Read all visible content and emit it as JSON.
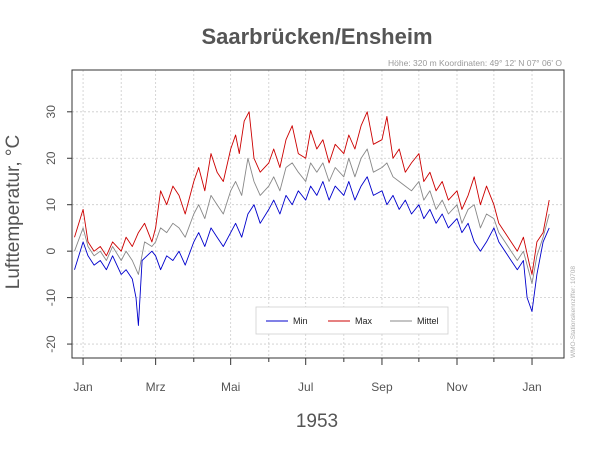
{
  "chart_data": {
    "type": "line",
    "title": "Saarbrücken/Ensheim",
    "subtitle": "Höhe: 320 m   Koordinaten: 49° 12' N  07° 06' O",
    "side_note": "WMO-Stationskennziffer: 10708",
    "xlabel": "1953",
    "ylabel": "Lufttemperatur, °C",
    "ylim": [
      -23,
      39
    ],
    "yticks": [
      -20,
      -10,
      0,
      10,
      20,
      30
    ],
    "xlim": [
      "1952-12-23",
      "1954-01-27"
    ],
    "xticks": [
      {
        "label": "Jan",
        "date": "1953-01-01"
      },
      {
        "label": "Mrz",
        "date": "1953-03-01"
      },
      {
        "label": "Mai",
        "date": "1953-05-01"
      },
      {
        "label": "Jul",
        "date": "1953-07-01"
      },
      {
        "label": "Sep",
        "date": "1953-09-01"
      },
      {
        "label": "Nov",
        "date": "1953-11-01"
      },
      {
        "label": "Jan",
        "date": "1954-01-01"
      }
    ],
    "minor_ticks": [
      "1953-02-01",
      "1953-04-01",
      "1953-06-01",
      "1953-08-01",
      "1953-10-01",
      "1953-12-01"
    ],
    "grid": true,
    "legend_position": "bottom-center",
    "series": [
      {
        "name": "Min",
        "color": "#0000cc",
        "points": [
          [
            "1952-12-25",
            -4
          ],
          [
            "1953-01-01",
            2
          ],
          [
            "1953-01-05",
            -1
          ],
          [
            "1953-01-10",
            -3
          ],
          [
            "1953-01-15",
            -2
          ],
          [
            "1953-01-20",
            -4
          ],
          [
            "1953-01-25",
            -1
          ],
          [
            "1953-02-01",
            -5
          ],
          [
            "1953-02-05",
            -4
          ],
          [
            "1953-02-10",
            -6
          ],
          [
            "1953-02-13",
            -10
          ],
          [
            "1953-02-15",
            -16
          ],
          [
            "1953-02-18",
            -2
          ],
          [
            "1953-02-22",
            -1
          ],
          [
            "1953-02-26",
            0
          ],
          [
            "1953-03-01",
            -1
          ],
          [
            "1953-03-05",
            -4
          ],
          [
            "1953-03-10",
            -1
          ],
          [
            "1953-03-15",
            -2
          ],
          [
            "1953-03-20",
            0
          ],
          [
            "1953-03-25",
            -3
          ],
          [
            "1953-04-01",
            2
          ],
          [
            "1953-04-05",
            4
          ],
          [
            "1953-04-10",
            1
          ],
          [
            "1953-04-15",
            5
          ],
          [
            "1953-04-20",
            3
          ],
          [
            "1953-04-25",
            1
          ],
          [
            "1953-05-01",
            4
          ],
          [
            "1953-05-05",
            6
          ],
          [
            "1953-05-10",
            3
          ],
          [
            "1953-05-15",
            8
          ],
          [
            "1953-05-20",
            10
          ],
          [
            "1953-05-25",
            6
          ],
          [
            "1953-06-01",
            9
          ],
          [
            "1953-06-05",
            11
          ],
          [
            "1953-06-10",
            8
          ],
          [
            "1953-06-15",
            12
          ],
          [
            "1953-06-20",
            10
          ],
          [
            "1953-06-25",
            13
          ],
          [
            "1953-07-01",
            11
          ],
          [
            "1953-07-05",
            14
          ],
          [
            "1953-07-10",
            12
          ],
          [
            "1953-07-15",
            15
          ],
          [
            "1953-07-20",
            11
          ],
          [
            "1953-07-25",
            14
          ],
          [
            "1953-08-01",
            12
          ],
          [
            "1953-08-05",
            15
          ],
          [
            "1953-08-10",
            11
          ],
          [
            "1953-08-15",
            14
          ],
          [
            "1953-08-20",
            16
          ],
          [
            "1953-08-25",
            12
          ],
          [
            "1953-09-01",
            13
          ],
          [
            "1953-09-05",
            10
          ],
          [
            "1953-09-10",
            12
          ],
          [
            "1953-09-15",
            9
          ],
          [
            "1953-09-20",
            11
          ],
          [
            "1953-09-25",
            8
          ],
          [
            "1953-10-01",
            10
          ],
          [
            "1953-10-05",
            7
          ],
          [
            "1953-10-10",
            9
          ],
          [
            "1953-10-15",
            6
          ],
          [
            "1953-10-20",
            8
          ],
          [
            "1953-10-25",
            5
          ],
          [
            "1953-11-01",
            7
          ],
          [
            "1953-11-05",
            4
          ],
          [
            "1953-11-10",
            6
          ],
          [
            "1953-11-15",
            2
          ],
          [
            "1953-11-20",
            0
          ],
          [
            "1953-11-25",
            2
          ],
          [
            "1953-12-01",
            5
          ],
          [
            "1953-12-05",
            2
          ],
          [
            "1953-12-10",
            0
          ],
          [
            "1953-12-15",
            -2
          ],
          [
            "1953-12-20",
            -4
          ],
          [
            "1953-12-25",
            -2
          ],
          [
            "1953-12-28",
            -10
          ],
          [
            "1954-01-01",
            -13
          ],
          [
            "1954-01-05",
            -5
          ],
          [
            "1954-01-10",
            2
          ],
          [
            "1954-01-15",
            5
          ]
        ]
      },
      {
        "name": "Max",
        "color": "#cc0000",
        "points": [
          [
            "1952-12-25",
            3
          ],
          [
            "1953-01-01",
            9
          ],
          [
            "1953-01-05",
            2
          ],
          [
            "1953-01-10",
            0
          ],
          [
            "1953-01-15",
            1
          ],
          [
            "1953-01-20",
            -1
          ],
          [
            "1953-01-25",
            2
          ],
          [
            "1953-02-01",
            0
          ],
          [
            "1953-02-05",
            3
          ],
          [
            "1953-02-10",
            1
          ],
          [
            "1953-02-15",
            4
          ],
          [
            "1953-02-20",
            6
          ],
          [
            "1953-02-26",
            2
          ],
          [
            "1953-03-01",
            5
          ],
          [
            "1953-03-05",
            13
          ],
          [
            "1953-03-10",
            10
          ],
          [
            "1953-03-15",
            14
          ],
          [
            "1953-03-20",
            12
          ],
          [
            "1953-03-25",
            8
          ],
          [
            "1953-04-01",
            15
          ],
          [
            "1953-04-05",
            18
          ],
          [
            "1953-04-10",
            13
          ],
          [
            "1953-04-15",
            21
          ],
          [
            "1953-04-20",
            17
          ],
          [
            "1953-04-25",
            15
          ],
          [
            "1953-05-01",
            22
          ],
          [
            "1953-05-05",
            25
          ],
          [
            "1953-05-08",
            21
          ],
          [
            "1953-05-12",
            28
          ],
          [
            "1953-05-16",
            30
          ],
          [
            "1953-05-20",
            20
          ],
          [
            "1953-05-25",
            17
          ],
          [
            "1953-06-01",
            19
          ],
          [
            "1953-06-05",
            22
          ],
          [
            "1953-06-10",
            18
          ],
          [
            "1953-06-15",
            24
          ],
          [
            "1953-06-20",
            27
          ],
          [
            "1953-06-25",
            21
          ],
          [
            "1953-07-01",
            20
          ],
          [
            "1953-07-05",
            26
          ],
          [
            "1953-07-10",
            22
          ],
          [
            "1953-07-15",
            24
          ],
          [
            "1953-07-20",
            19
          ],
          [
            "1953-07-25",
            23
          ],
          [
            "1953-08-01",
            21
          ],
          [
            "1953-08-05",
            25
          ],
          [
            "1953-08-10",
            22
          ],
          [
            "1953-08-15",
            27
          ],
          [
            "1953-08-20",
            30
          ],
          [
            "1953-08-25",
            23
          ],
          [
            "1953-09-01",
            24
          ],
          [
            "1953-09-05",
            29
          ],
          [
            "1953-09-10",
            20
          ],
          [
            "1953-09-15",
            22
          ],
          [
            "1953-09-20",
            17
          ],
          [
            "1953-09-25",
            19
          ],
          [
            "1953-10-01",
            21
          ],
          [
            "1953-10-05",
            15
          ],
          [
            "1953-10-10",
            17
          ],
          [
            "1953-10-15",
            13
          ],
          [
            "1953-10-20",
            15
          ],
          [
            "1953-10-25",
            11
          ],
          [
            "1953-11-01",
            13
          ],
          [
            "1953-11-05",
            9
          ],
          [
            "1953-11-10",
            12
          ],
          [
            "1953-11-15",
            16
          ],
          [
            "1953-11-20",
            10
          ],
          [
            "1953-11-25",
            14
          ],
          [
            "1953-12-01",
            10
          ],
          [
            "1953-12-05",
            6
          ],
          [
            "1953-12-10",
            4
          ],
          [
            "1953-12-15",
            2
          ],
          [
            "1953-12-20",
            0
          ],
          [
            "1953-12-25",
            3
          ],
          [
            "1953-12-30",
            -3
          ],
          [
            "1954-01-01",
            -5
          ],
          [
            "1954-01-05",
            2
          ],
          [
            "1954-01-10",
            4
          ],
          [
            "1954-01-15",
            11
          ]
        ]
      },
      {
        "name": "Mittel",
        "color": "#888888",
        "points": [
          [
            "1952-12-25",
            0
          ],
          [
            "1953-01-01",
            5
          ],
          [
            "1953-01-05",
            1
          ],
          [
            "1953-01-10",
            -1
          ],
          [
            "1953-01-15",
            0
          ],
          [
            "1953-01-20",
            -2
          ],
          [
            "1953-01-25",
            1
          ],
          [
            "1953-02-01",
            -2
          ],
          [
            "1953-02-05",
            0
          ],
          [
            "1953-02-10",
            -2
          ],
          [
            "1953-02-15",
            -5
          ],
          [
            "1953-02-20",
            2
          ],
          [
            "1953-02-26",
            1
          ],
          [
            "1953-03-01",
            2
          ],
          [
            "1953-03-05",
            5
          ],
          [
            "1953-03-10",
            4
          ],
          [
            "1953-03-15",
            6
          ],
          [
            "1953-03-20",
            5
          ],
          [
            "1953-03-25",
            3
          ],
          [
            "1953-04-01",
            8
          ],
          [
            "1953-04-05",
            10
          ],
          [
            "1953-04-10",
            7
          ],
          [
            "1953-04-15",
            12
          ],
          [
            "1953-04-20",
            10
          ],
          [
            "1953-04-25",
            8
          ],
          [
            "1953-05-01",
            13
          ],
          [
            "1953-05-05",
            15
          ],
          [
            "1953-05-10",
            12
          ],
          [
            "1953-05-15",
            20
          ],
          [
            "1953-05-20",
            15
          ],
          [
            "1953-05-25",
            12
          ],
          [
            "1953-06-01",
            14
          ],
          [
            "1953-06-05",
            16
          ],
          [
            "1953-06-10",
            13
          ],
          [
            "1953-06-15",
            18
          ],
          [
            "1953-06-20",
            19
          ],
          [
            "1953-06-25",
            17
          ],
          [
            "1953-07-01",
            15
          ],
          [
            "1953-07-05",
            19
          ],
          [
            "1953-07-10",
            17
          ],
          [
            "1953-07-15",
            19
          ],
          [
            "1953-07-20",
            15
          ],
          [
            "1953-07-25",
            18
          ],
          [
            "1953-08-01",
            16
          ],
          [
            "1953-08-05",
            20
          ],
          [
            "1953-08-10",
            16
          ],
          [
            "1953-08-15",
            20
          ],
          [
            "1953-08-20",
            22
          ],
          [
            "1953-08-25",
            17
          ],
          [
            "1953-09-01",
            18
          ],
          [
            "1953-09-05",
            19
          ],
          [
            "1953-09-10",
            16
          ],
          [
            "1953-09-15",
            15
          ],
          [
            "1953-09-20",
            14
          ],
          [
            "1953-09-25",
            13
          ],
          [
            "1953-10-01",
            15
          ],
          [
            "1953-10-05",
            11
          ],
          [
            "1953-10-10",
            13
          ],
          [
            "1953-10-15",
            9
          ],
          [
            "1953-10-20",
            11
          ],
          [
            "1953-10-25",
            8
          ],
          [
            "1953-11-01",
            10
          ],
          [
            "1953-11-05",
            6
          ],
          [
            "1953-11-10",
            9
          ],
          [
            "1953-11-15",
            10
          ],
          [
            "1953-11-20",
            5
          ],
          [
            "1953-11-25",
            8
          ],
          [
            "1953-12-01",
            7
          ],
          [
            "1953-12-05",
            4
          ],
          [
            "1953-12-10",
            2
          ],
          [
            "1953-12-15",
            0
          ],
          [
            "1953-12-20",
            -2
          ],
          [
            "1953-12-25",
            0
          ],
          [
            "1953-12-30",
            -5
          ],
          [
            "1954-01-01",
            -7
          ],
          [
            "1954-01-05",
            -1
          ],
          [
            "1954-01-10",
            3
          ],
          [
            "1954-01-15",
            8
          ]
        ]
      }
    ]
  }
}
